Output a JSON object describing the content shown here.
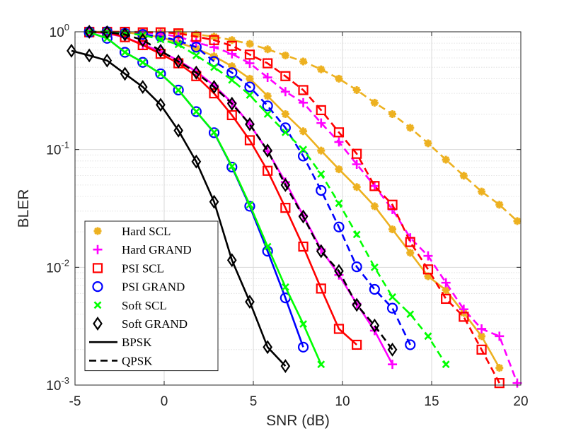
{
  "chart_data": {
    "type": "line",
    "xlabel": "SNR (dB)",
    "ylabel": "BLER",
    "xlim": [
      -5,
      20
    ],
    "ylim": [
      0.001,
      1
    ],
    "log_y": true,
    "grid": true,
    "minor_grid": true,
    "legend": "lower left",
    "xticks": [
      -5,
      0,
      5,
      10,
      15,
      20
    ],
    "yticks": [
      {
        "value": 0.001,
        "label": "10",
        "exponent": "-3"
      },
      {
        "value": 0.01,
        "label": "10",
        "exponent": "-2"
      },
      {
        "value": 0.1,
        "label": "10",
        "exponent": "-1"
      },
      {
        "value": 1,
        "label": "10",
        "exponent": "0"
      }
    ],
    "methods": [
      {
        "name": "Hard SCL",
        "color": "#EDB120",
        "marker": "asterisk"
      },
      {
        "name": "Hard GRAND",
        "color": "#FF00FF",
        "marker": "plus"
      },
      {
        "name": "PSI SCL",
        "color": "#FF0000",
        "marker": "square"
      },
      {
        "name": "PSI GRAND",
        "color": "#0000FF",
        "marker": "circle"
      },
      {
        "name": "Soft SCL",
        "color": "#00FF00",
        "marker": "cross"
      },
      {
        "name": "Soft GRAND",
        "color": "#000000",
        "marker": "diamond"
      }
    ],
    "modulations": [
      {
        "name": "BPSK",
        "dash": "solid"
      },
      {
        "name": "QPSK",
        "dash": "dashed"
      }
    ],
    "series": [
      {
        "method": "Hard SCL",
        "modulation": "BPSK",
        "x": [
          -4.2,
          -3.2,
          -2.2,
          -1.2,
          -0.2,
          0.8,
          1.8,
          2.8,
          3.8,
          4.8,
          5.8,
          6.8,
          7.8,
          8.8,
          9.8,
          10.8,
          11.8,
          12.8,
          13.8,
          14.8,
          15.8,
          16.8,
          17.8,
          18.8
        ],
        "values": [
          1,
          1,
          0.99,
          0.95,
          0.9,
          0.81,
          0.72,
          0.62,
          0.51,
          0.4,
          0.285,
          0.2,
          0.143,
          0.098,
          0.068,
          0.048,
          0.033,
          0.021,
          0.0133,
          0.0084,
          0.0064,
          0.0041,
          0.0026,
          0.0014
        ]
      },
      {
        "method": "Hard SCL",
        "modulation": "QPSK",
        "x": [
          -4.2,
          -3.2,
          -2.2,
          -1.2,
          -0.2,
          0.8,
          1.8,
          2.8,
          3.8,
          4.8,
          5.8,
          6.8,
          7.8,
          8.8,
          9.8,
          10.8,
          11.8,
          12.8,
          13.8,
          14.8,
          15.8,
          16.8,
          17.8,
          18.8,
          19.8
        ],
        "values": [
          1,
          1,
          1,
          1,
          0.99,
          0.99,
          0.95,
          0.91,
          0.85,
          0.79,
          0.71,
          0.63,
          0.56,
          0.48,
          0.4,
          0.32,
          0.25,
          0.2,
          0.153,
          0.113,
          0.082,
          0.06,
          0.044,
          0.034,
          0.0247
        ]
      },
      {
        "method": "Hard GRAND",
        "modulation": "BPSK",
        "x": [
          -4.2,
          -3.2,
          -2.2,
          -1.2,
          -0.2,
          0.8,
          1.8,
          2.8,
          3.8,
          4.8,
          5.8,
          6.8,
          7.8,
          8.8,
          9.8,
          10.8,
          11.8,
          12.8
        ],
        "values": [
          1,
          0.97,
          0.9,
          0.78,
          0.68,
          0.57,
          0.46,
          0.35,
          0.25,
          0.164,
          0.097,
          0.053,
          0.0275,
          0.0142,
          0.0086,
          0.0049,
          0.0029,
          0.0015
        ]
      },
      {
        "method": "Hard GRAND",
        "modulation": "QPSK",
        "x": [
          -4.2,
          -3.2,
          -2.2,
          -1.2,
          -0.2,
          0.8,
          1.8,
          2.8,
          3.8,
          4.8,
          5.8,
          6.8,
          7.8,
          8.8,
          9.8,
          10.8,
          11.8,
          12.8,
          13.8,
          14.8,
          15.8,
          16.8,
          17.8,
          18.8,
          19.8
        ],
        "values": [
          1,
          1,
          0.99,
          0.99,
          0.96,
          0.91,
          0.81,
          0.74,
          0.65,
          0.54,
          0.41,
          0.31,
          0.25,
          0.168,
          0.116,
          0.075,
          0.049,
          0.031,
          0.0178,
          0.0125,
          0.0074,
          0.0044,
          0.003,
          0.0026,
          0.00104
        ]
      },
      {
        "method": "PSI SCL",
        "modulation": "BPSK",
        "x": [
          -4.2,
          -3.2,
          -2.2,
          -1.2,
          -0.2,
          0.8,
          1.8,
          2.8,
          3.8,
          4.8,
          5.8,
          6.8,
          7.8,
          8.8,
          9.8,
          10.8
        ],
        "values": [
          0.99,
          0.99,
          0.9,
          0.77,
          0.65,
          0.54,
          0.42,
          0.3,
          0.196,
          0.12,
          0.066,
          0.032,
          0.015,
          0.0066,
          0.003,
          0.0022
        ]
      },
      {
        "method": "PSI SCL",
        "modulation": "QPSK",
        "x": [
          -4.2,
          -3.2,
          -2.2,
          -1.2,
          -0.2,
          0.8,
          1.8,
          2.8,
          3.8,
          4.8,
          5.8,
          6.8,
          7.8,
          8.8,
          9.8,
          10.8,
          11.8,
          12.8,
          13.8,
          14.8,
          15.8,
          16.8,
          17.8,
          18.8
        ],
        "values": [
          1,
          1,
          1,
          0.99,
          0.99,
          0.97,
          0.91,
          0.85,
          0.76,
          0.64,
          0.54,
          0.42,
          0.32,
          0.216,
          0.14,
          0.092,
          0.049,
          0.034,
          0.0164,
          0.0096,
          0.0054,
          0.0038,
          0.002,
          0.00104
        ]
      },
      {
        "method": "PSI GRAND",
        "modulation": "BPSK",
        "x": [
          -4.2,
          -3.2,
          -2.2,
          -1.2,
          -0.2,
          0.8,
          1.8,
          2.8,
          3.8,
          4.8,
          5.8,
          6.8,
          7.8
        ],
        "values": [
          0.99,
          0.88,
          0.67,
          0.55,
          0.44,
          0.32,
          0.21,
          0.139,
          0.071,
          0.033,
          0.0137,
          0.0055,
          0.0021
        ]
      },
      {
        "method": "PSI GRAND",
        "modulation": "QPSK",
        "x": [
          -4.2,
          -3.2,
          -2.2,
          -1.2,
          -0.2,
          0.8,
          1.8,
          2.8,
          3.8,
          4.8,
          5.8,
          6.8,
          7.8,
          8.8,
          9.8,
          10.8,
          11.8,
          12.8,
          13.8
        ],
        "values": [
          1,
          1,
          0.97,
          0.95,
          0.91,
          0.84,
          0.74,
          0.56,
          0.45,
          0.34,
          0.235,
          0.153,
          0.088,
          0.045,
          0.022,
          0.0101,
          0.0065,
          0.0045,
          0.0022
        ]
      },
      {
        "method": "Soft SCL",
        "modulation": "BPSK",
        "x": [
          -4.2,
          -3.2,
          -2.2,
          -1.2,
          -0.2,
          0.8,
          1.8,
          2.8,
          3.8,
          4.8,
          5.8,
          6.8,
          7.8,
          8.8
        ],
        "values": [
          0.99,
          0.88,
          0.67,
          0.55,
          0.44,
          0.32,
          0.21,
          0.14,
          0.072,
          0.034,
          0.015,
          0.0068,
          0.0033,
          0.0015
        ]
      },
      {
        "method": "Soft SCL",
        "modulation": "QPSK",
        "x": [
          -4.2,
          -3.2,
          -2.2,
          -1.2,
          -0.2,
          0.8,
          1.8,
          2.8,
          3.8,
          4.8,
          5.8,
          6.8,
          7.8,
          8.8,
          9.8,
          10.8,
          11.8,
          12.8,
          13.8,
          14.8,
          15.8
        ],
        "values": [
          1,
          1,
          0.97,
          0.94,
          0.86,
          0.78,
          0.63,
          0.5,
          0.39,
          0.29,
          0.2,
          0.14,
          0.1,
          0.062,
          0.035,
          0.019,
          0.01,
          0.0056,
          0.004,
          0.0026,
          0.0015
        ]
      },
      {
        "method": "Soft GRAND",
        "modulation": "BPSK",
        "x": [
          -5.2,
          -4.2,
          -3.2,
          -2.2,
          -1.2,
          -0.2,
          0.8,
          1.8,
          2.8,
          3.8,
          4.8,
          5.8,
          6.8
        ],
        "values": [
          0.69,
          0.63,
          0.57,
          0.44,
          0.34,
          0.24,
          0.145,
          0.079,
          0.036,
          0.0115,
          0.0051,
          0.0021,
          0.00145
        ]
      },
      {
        "method": "Soft GRAND",
        "modulation": "QPSK",
        "x": [
          -4.2,
          -3.2,
          -2.2,
          -1.2,
          -0.2,
          0.8,
          1.8,
          2.8,
          3.8,
          4.8,
          5.8,
          6.8,
          7.8,
          8.8,
          9.8,
          10.8,
          11.8,
          12.8
        ],
        "values": [
          1,
          0.99,
          0.95,
          0.85,
          0.69,
          0.56,
          0.45,
          0.34,
          0.245,
          0.164,
          0.098,
          0.05,
          0.027,
          0.0137,
          0.0093,
          0.0048,
          0.0032,
          0.002
        ]
      }
    ]
  }
}
